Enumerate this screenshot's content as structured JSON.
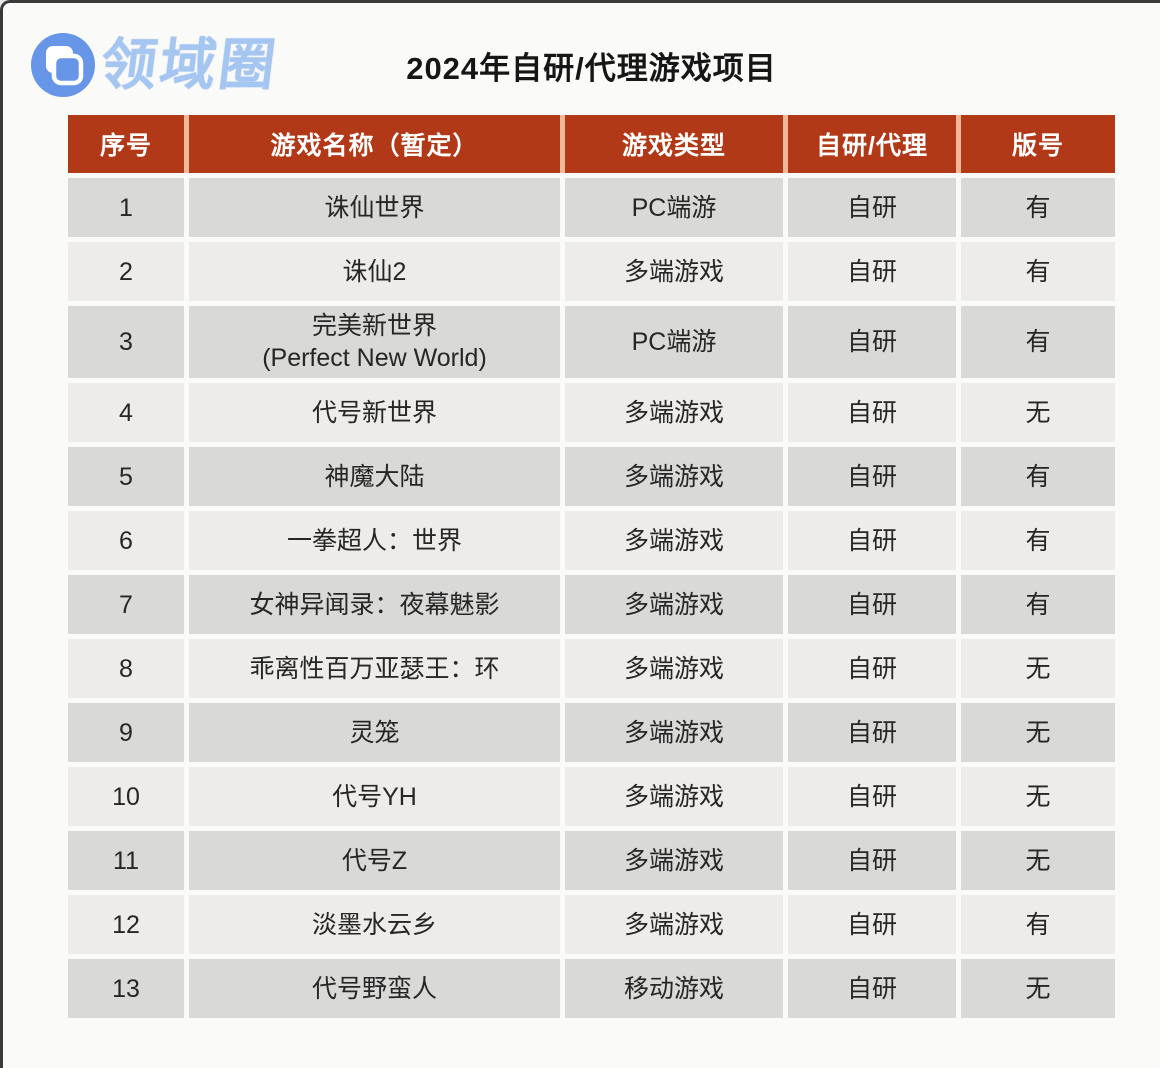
{
  "logo": {
    "text": "领域圈",
    "icon": "overlapping-squares-icon",
    "circle_color": "#6795e7",
    "text_color": "#a6c6f2"
  },
  "page": {
    "title": "2024年自研/代理游戏项目"
  },
  "colors": {
    "header_bg": "#b23917",
    "header_gap": "#efb896",
    "row_dark": "#d9d9d7",
    "row_light": "#edecea",
    "page_bg": "#fafaf8"
  },
  "chart_data": {
    "type": "table",
    "title": "2024年自研/代理游戏项目",
    "columns": [
      {
        "key": "no",
        "label": "序号"
      },
      {
        "key": "name",
        "label": "游戏名称（暂定）"
      },
      {
        "key": "type",
        "label": "游戏类型"
      },
      {
        "key": "dev",
        "label": "自研/代理"
      },
      {
        "key": "license",
        "label": "版号"
      }
    ],
    "rows": [
      {
        "no": "1",
        "name": "诛仙世界",
        "name_sub": "",
        "type": "PC端游",
        "dev": "自研",
        "license": "有"
      },
      {
        "no": "2",
        "name": "诛仙2",
        "name_sub": "",
        "type": "多端游戏",
        "dev": "自研",
        "license": "有"
      },
      {
        "no": "3",
        "name": "完美新世界",
        "name_sub": "(Perfect New World)",
        "type": "PC端游",
        "dev": "自研",
        "license": "有"
      },
      {
        "no": "4",
        "name": "代号新世界",
        "name_sub": "",
        "type": "多端游戏",
        "dev": "自研",
        "license": "无"
      },
      {
        "no": "5",
        "name": "神魔大陆",
        "name_sub": "",
        "type": "多端游戏",
        "dev": "自研",
        "license": "有"
      },
      {
        "no": "6",
        "name": "一拳超人：世界",
        "name_sub": "",
        "type": "多端游戏",
        "dev": "自研",
        "license": "有"
      },
      {
        "no": "7",
        "name": "女神异闻录：夜幕魅影",
        "name_sub": "",
        "type": "多端游戏",
        "dev": "自研",
        "license": "有"
      },
      {
        "no": "8",
        "name": "乖离性百万亚瑟王：环",
        "name_sub": "",
        "type": "多端游戏",
        "dev": "自研",
        "license": "无"
      },
      {
        "no": "9",
        "name": "灵笼",
        "name_sub": "",
        "type": "多端游戏",
        "dev": "自研",
        "license": "无"
      },
      {
        "no": "10",
        "name": "代号YH",
        "name_sub": "",
        "type": "多端游戏",
        "dev": "自研",
        "license": "无"
      },
      {
        "no": "11",
        "name": "代号Z",
        "name_sub": "",
        "type": "多端游戏",
        "dev": "自研",
        "license": "无"
      },
      {
        "no": "12",
        "name": "淡墨水云乡",
        "name_sub": "",
        "type": "多端游戏",
        "dev": "自研",
        "license": "有"
      },
      {
        "no": "13",
        "name": "代号野蛮人",
        "name_sub": "",
        "type": "移动游戏",
        "dev": "自研",
        "license": "无"
      }
    ]
  }
}
